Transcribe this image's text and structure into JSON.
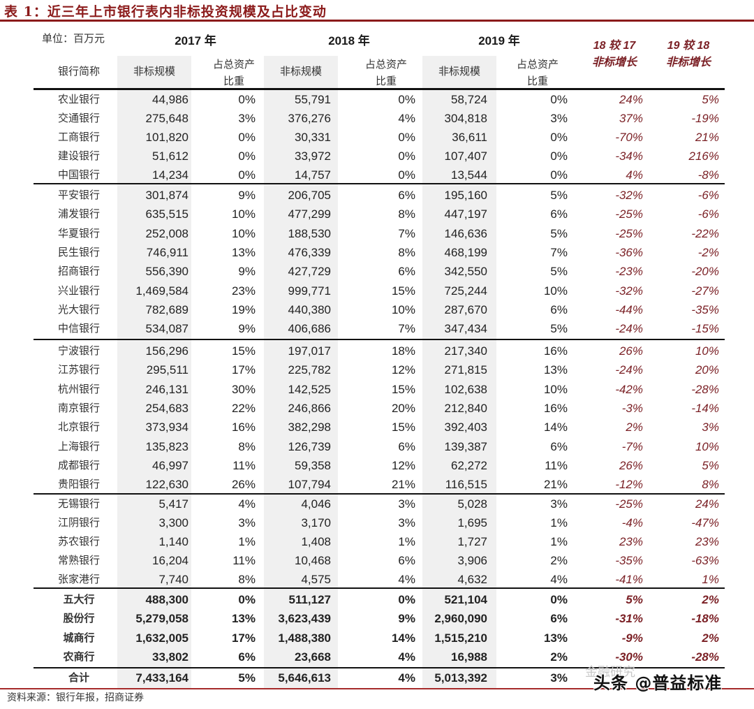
{
  "title": "表 1：近三年上市银行表内非标投资规模及占比变动",
  "unit_label": "单位：百万元",
  "headers": {
    "years": [
      "2017 年",
      "2018 年",
      "2019 年"
    ],
    "bank_name": "银行简称",
    "scale": "非标规模",
    "ratio_line1": "占总资产",
    "ratio_line2": "比重",
    "growth_18v17_line1": "18 较 17",
    "growth_18v17_line2": "非标增长",
    "growth_19v18_line1": "19 较 18",
    "growth_19v18_line2": "非标增长"
  },
  "colors": {
    "title": "#8b1a1a",
    "growth_text": "#7a1f24",
    "band": "#f0f0f0",
    "rule_red": "#a52a2a"
  },
  "rows": [
    [
      "农业银行",
      "44,986",
      "0%",
      "55,791",
      "0%",
      "58,724",
      "0%",
      "24%",
      "5%"
    ],
    [
      "交通银行",
      "275,648",
      "3%",
      "376,276",
      "4%",
      "304,818",
      "3%",
      "37%",
      "-19%"
    ],
    [
      "工商银行",
      "101,820",
      "0%",
      "30,331",
      "0%",
      "36,611",
      "0%",
      "-70%",
      "21%"
    ],
    [
      "建设银行",
      "51,612",
      "0%",
      "33,972",
      "0%",
      "107,407",
      "0%",
      "-34%",
      "216%"
    ],
    [
      "中国银行",
      "14,234",
      "0%",
      "14,757",
      "0%",
      "13,544",
      "0%",
      "4%",
      "-8%"
    ],
    [
      "平安银行",
      "301,874",
      "9%",
      "206,705",
      "6%",
      "195,160",
      "5%",
      "-32%",
      "-6%"
    ],
    [
      "浦发银行",
      "635,515",
      "10%",
      "477,299",
      "8%",
      "447,197",
      "6%",
      "-25%",
      "-6%"
    ],
    [
      "华夏银行",
      "252,008",
      "10%",
      "188,530",
      "7%",
      "146,636",
      "5%",
      "-25%",
      "-22%"
    ],
    [
      "民生银行",
      "746,911",
      "13%",
      "476,339",
      "8%",
      "468,199",
      "7%",
      "-36%",
      "-2%"
    ],
    [
      "招商银行",
      "556,390",
      "9%",
      "427,729",
      "6%",
      "342,550",
      "5%",
      "-23%",
      "-20%"
    ],
    [
      "兴业银行",
      "1,469,584",
      "23%",
      "999,771",
      "15%",
      "725,244",
      "10%",
      "-32%",
      "-27%"
    ],
    [
      "光大银行",
      "782,689",
      "19%",
      "440,380",
      "10%",
      "287,670",
      "6%",
      "-44%",
      "-35%"
    ],
    [
      "中信银行",
      "534,087",
      "9%",
      "406,686",
      "7%",
      "347,434",
      "5%",
      "-24%",
      "-15%"
    ],
    [
      "宁波银行",
      "156,296",
      "15%",
      "197,017",
      "18%",
      "217,340",
      "16%",
      "26%",
      "10%"
    ],
    [
      "江苏银行",
      "295,511",
      "17%",
      "225,782",
      "12%",
      "271,815",
      "13%",
      "-24%",
      "20%"
    ],
    [
      "杭州银行",
      "246,131",
      "30%",
      "142,525",
      "15%",
      "102,638",
      "10%",
      "-42%",
      "-28%"
    ],
    [
      "南京银行",
      "254,683",
      "22%",
      "246,866",
      "20%",
      "212,840",
      "16%",
      "-3%",
      "-14%"
    ],
    [
      "北京银行",
      "373,934",
      "16%",
      "382,298",
      "15%",
      "392,403",
      "14%",
      "2%",
      "3%"
    ],
    [
      "上海银行",
      "135,823",
      "8%",
      "126,739",
      "6%",
      "139,387",
      "6%",
      "-7%",
      "10%"
    ],
    [
      "成都银行",
      "46,997",
      "11%",
      "59,358",
      "12%",
      "62,272",
      "11%",
      "26%",
      "5%"
    ],
    [
      "贵阳银行",
      "122,630",
      "26%",
      "107,794",
      "21%",
      "116,515",
      "21%",
      "-12%",
      "8%"
    ],
    [
      "无锡银行",
      "5,417",
      "4%",
      "4,046",
      "3%",
      "5,028",
      "3%",
      "-25%",
      "24%"
    ],
    [
      "江阴银行",
      "3,300",
      "3%",
      "3,170",
      "3%",
      "1,695",
      "1%",
      "-4%",
      "-47%"
    ],
    [
      "苏农银行",
      "1,140",
      "1%",
      "1,408",
      "1%",
      "1,727",
      "1%",
      "23%",
      "23%"
    ],
    [
      "常熟银行",
      "16,204",
      "11%",
      "10,468",
      "6%",
      "3,906",
      "2%",
      "-35%",
      "-63%"
    ],
    [
      "张家港行",
      "7,740",
      "8%",
      "4,575",
      "4%",
      "4,632",
      "4%",
      "-41%",
      "1%"
    ],
    [
      "五大行",
      "488,300",
      "0%",
      "511,127",
      "0%",
      "521,104",
      "0%",
      "5%",
      "2%"
    ],
    [
      "股份行",
      "5,279,058",
      "13%",
      "3,623,439",
      "9%",
      "2,960,090",
      "6%",
      "-31%",
      "-18%"
    ],
    [
      "城商行",
      "1,632,005",
      "17%",
      "1,488,380",
      "14%",
      "1,515,210",
      "13%",
      "-9%",
      "2%"
    ],
    [
      "农商行",
      "33,802",
      "6%",
      "23,668",
      "4%",
      "16,988",
      "2%",
      "-30%",
      "-28%"
    ],
    [
      "合计",
      "7,433,164",
      "5%",
      "5,646,613",
      "4%",
      "5,013,392",
      "3%",
      "",
      ""
    ]
  ],
  "source": "资料来源：银行年报，招商证券",
  "watermark": "头条 @普益标准",
  "watermark_bg": "金融研究"
}
